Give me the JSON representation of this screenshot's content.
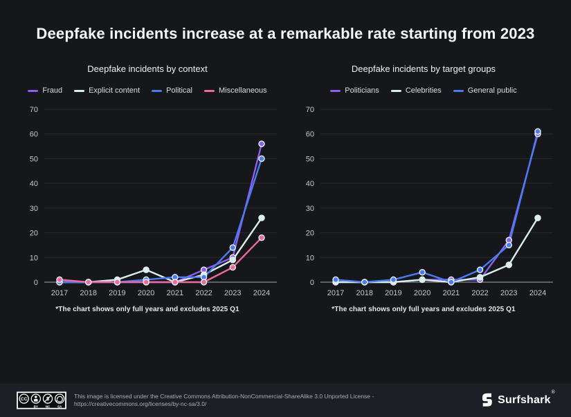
{
  "page": {
    "title": "Deepfake incidents increase at a remarkable rate starting from 2023",
    "background": "#15171b",
    "accent_colors": {
      "purple": "#8c5ff0",
      "mint": "#d8f0eb",
      "blue": "#4a7bf2",
      "pink": "#ec6a9c"
    }
  },
  "chart_data": [
    {
      "type": "line",
      "title": "Deepfake incidents by context",
      "categories": [
        "2017",
        "2018",
        "2019",
        "2020",
        "2021",
        "2022",
        "2023",
        "2024"
      ],
      "series": [
        {
          "name": "Fraud",
          "color": "#8c5ff0",
          "values": [
            0,
            0,
            0,
            0,
            0,
            5,
            10,
            56
          ]
        },
        {
          "name": "Explicit content",
          "color": "#d8f0eb",
          "values": [
            0,
            0,
            1,
            5,
            0,
            3,
            9,
            26
          ]
        },
        {
          "name": "Political",
          "color": "#4a7bf2",
          "values": [
            0,
            0,
            0,
            1,
            2,
            2,
            14,
            50
          ]
        },
        {
          "name": "Miscellaneous",
          "color": "#ec6a9c",
          "values": [
            1,
            0,
            0,
            0,
            0,
            0,
            6,
            18
          ]
        }
      ],
      "ylim": [
        0,
        70
      ],
      "yticks": [
        0,
        10,
        20,
        30,
        40,
        50,
        60,
        70
      ],
      "grid": "horizontal",
      "legend_position": "top",
      "footnote": "*The chart shows only full years and excludes 2025 Q1"
    },
    {
      "type": "line",
      "title": "Deepfake incidents by target groups",
      "categories": [
        "2017",
        "2018",
        "2019",
        "2020",
        "2021",
        "2022",
        "2023",
        "2024"
      ],
      "series": [
        {
          "name": "Politicians",
          "color": "#8c5ff0",
          "values": [
            0,
            0,
            0,
            1,
            1,
            1,
            17,
            60
          ]
        },
        {
          "name": "Celebrities",
          "color": "#d8f0eb",
          "values": [
            0,
            0,
            0,
            1,
            0,
            2,
            7,
            26
          ]
        },
        {
          "name": "General public",
          "color": "#4a7bf2",
          "values": [
            1,
            0,
            1,
            4,
            0,
            5,
            15,
            61
          ]
        }
      ],
      "ylim": [
        0,
        70
      ],
      "yticks": [
        0,
        10,
        20,
        30,
        40,
        50,
        60,
        70
      ],
      "grid": "horizontal",
      "legend_position": "top",
      "footnote": "*The chart shows only full years and excludes 2025 Q1"
    }
  ],
  "footer": {
    "license_line1": "This image is licensed under the Creative Commons Attribution-NonCommercial-ShareAlike 3.0 Unported License -",
    "license_line2": "https://creativecommons.org/licenses/by-nc-sa/3.0/",
    "badge": {
      "cc": "CC",
      "by": "BY",
      "nc": "NC",
      "sa": "SA"
    },
    "brand": {
      "name": "Surfshark",
      "mark": "®"
    }
  }
}
